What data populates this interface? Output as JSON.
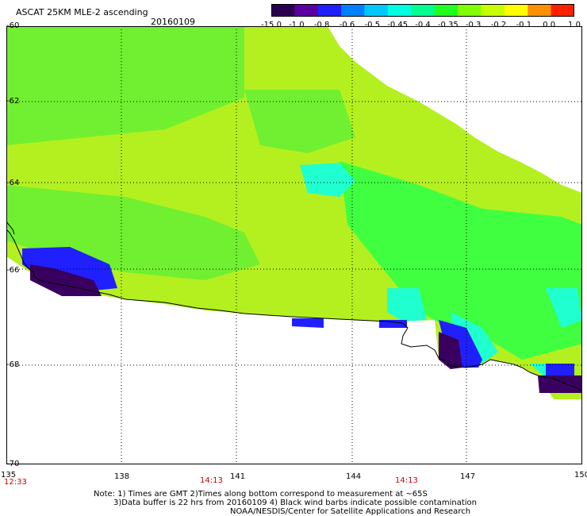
{
  "header": {
    "title": "ASCAT 25KM MLE-2 ascending",
    "date": "20160109"
  },
  "colorbar": {
    "labels": [
      "-15.0",
      "-1.0",
      "-0.8",
      "-0.6",
      "-0.5",
      "-0.45",
      "-0.4",
      "-0.35",
      "-0.3",
      "-0.2",
      "-0.1",
      "0.0",
      "1.0"
    ],
    "colors": [
      "#2a0050",
      "#5a00a0",
      "#2020ff",
      "#0080ff",
      "#00c8ff",
      "#00ffe0",
      "#00ff90",
      "#20ff20",
      "#80ff00",
      "#c8ff00",
      "#ffff00",
      "#ff9000",
      "#ff2000"
    ]
  },
  "map": {
    "lat_labels": [
      "-60",
      "-62",
      "-64",
      "-66",
      "-68",
      "-70"
    ],
    "lon_labels": [
      "135",
      "138",
      "141",
      "144",
      "147",
      "150"
    ],
    "times": [
      "12:33",
      "14:13",
      "14:13"
    ],
    "colors": {
      "light_green": "#b4f020",
      "green": "#70f030",
      "bright_green": "#40ff40",
      "cyan": "#20ffd0",
      "blue": "#2020ff",
      "dark_purple": "#3a0060",
      "coastline": "#000000"
    }
  },
  "notes": {
    "line1": "Note: 1) Times are GMT 2)Times along bottom correspond to measurement at ~65S",
    "line2": "3)Data buffer is 22 hrs from 20160109 4) Black wind barbs indicate possible contamination",
    "line3": "NOAA/NESDIS/Center for Satellite Applications and Research"
  }
}
